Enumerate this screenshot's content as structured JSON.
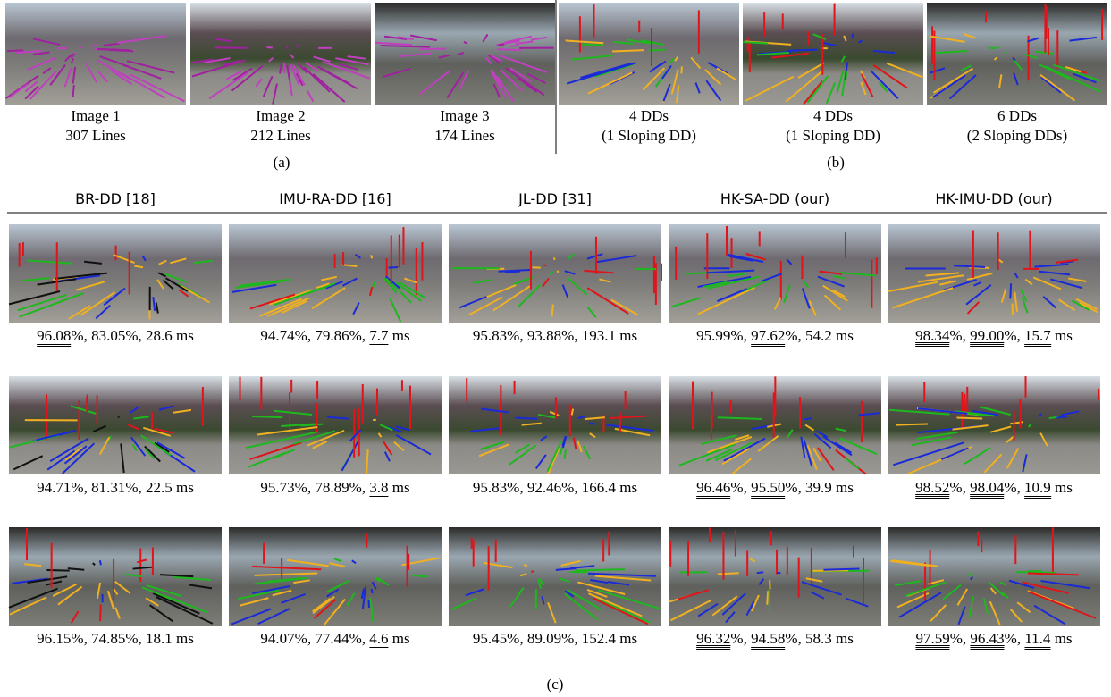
{
  "top": {
    "images": [
      {
        "line1": "Image 1",
        "line2": "307 Lines"
      },
      {
        "line1": "Image 2",
        "line2": "212 Lines"
      },
      {
        "line1": "Image 3",
        "line2": "174 Lines"
      },
      {
        "line1": "4 DDs",
        "line2": "(1 Sloping DD)"
      },
      {
        "line1": "4 DDs",
        "line2": "(1 Sloping DD)"
      },
      {
        "line1": "6 DDs",
        "line2": "(2 Sloping DDs)"
      }
    ],
    "labels": [
      "(a)",
      "(b)"
    ]
  },
  "methods": [
    "BR-DD [18]",
    "IMU-RA-DD [16]",
    "JL-DD [31]",
    "HK-SA-DD (our)",
    "HK-IMU-DD (our)"
  ],
  "rows": [
    {
      "cells": [
        {
          "caption": [
            {
              "text": "96.08",
              "underline": 2
            },
            {
              "text": "%, 83.05%, 28.6 ms",
              "underline": 0
            }
          ]
        },
        {
          "caption": [
            {
              "text": "94.74%, 79.86%, ",
              "underline": 0
            },
            {
              "text": "7.7",
              "underline": 1
            },
            {
              "text": " ms",
              "underline": 0
            }
          ]
        },
        {
          "caption": [
            {
              "text": "95.83%, 93.88%, 193.1 ms",
              "underline": 0
            }
          ]
        },
        {
          "caption": [
            {
              "text": "95.99%, ",
              "underline": 0
            },
            {
              "text": "97.62",
              "underline": 2
            },
            {
              "text": "%, 54.2 ms",
              "underline": 0
            }
          ]
        },
        {
          "caption": [
            {
              "text": "98.34",
              "underline": 3
            },
            {
              "text": "%, ",
              "underline": 0
            },
            {
              "text": "99.00",
              "underline": 3
            },
            {
              "text": "%, ",
              "underline": 0
            },
            {
              "text": "15.7",
              "underline": 2
            },
            {
              "text": " ms",
              "underline": 0
            }
          ]
        }
      ]
    },
    {
      "cells": [
        {
          "caption": [
            {
              "text": "94.71%, 81.31%, 22.5 ms",
              "underline": 0
            }
          ]
        },
        {
          "caption": [
            {
              "text": "95.73%, 78.89%, ",
              "underline": 0
            },
            {
              "text": "3.8",
              "underline": 1
            },
            {
              "text": " ms",
              "underline": 0
            }
          ]
        },
        {
          "caption": [
            {
              "text": "95.83%, 92.46%, 166.4 ms",
              "underline": 0
            }
          ]
        },
        {
          "caption": [
            {
              "text": "96.46",
              "underline": 2
            },
            {
              "text": "%, ",
              "underline": 0
            },
            {
              "text": "95.50",
              "underline": 2
            },
            {
              "text": "%, 39.9 ms",
              "underline": 0
            }
          ]
        },
        {
          "caption": [
            {
              "text": "98.52",
              "underline": 3
            },
            {
              "text": "%, ",
              "underline": 0
            },
            {
              "text": "98.04",
              "underline": 3
            },
            {
              "text": "%, ",
              "underline": 0
            },
            {
              "text": "10.9",
              "underline": 2
            },
            {
              "text": " ms",
              "underline": 0
            }
          ]
        }
      ]
    },
    {
      "cells": [
        {
          "caption": [
            {
              "text": "96.15%, 74.85%, 18.1 ms",
              "underline": 0
            }
          ]
        },
        {
          "caption": [
            {
              "text": "94.07%, 77.44%, ",
              "underline": 0
            },
            {
              "text": "4.6",
              "underline": 1
            },
            {
              "text": " ms",
              "underline": 0
            }
          ]
        },
        {
          "caption": [
            {
              "text": "95.45%, 89.09%, 152.4 ms",
              "underline": 0
            }
          ]
        },
        {
          "caption": [
            {
              "text": "96.32",
              "underline": 3
            },
            {
              "text": "%, ",
              "underline": 0
            },
            {
              "text": "94.58",
              "underline": 2
            },
            {
              "text": "%, 58.3 ms",
              "underline": 0
            }
          ]
        },
        {
          "caption": [
            {
              "text": "97.59",
              "underline": 3
            },
            {
              "text": "%, ",
              "underline": 0
            },
            {
              "text": "96.43",
              "underline": 3
            },
            {
              "text": "%, ",
              "underline": 0
            },
            {
              "text": "11.4",
              "underline": 2
            },
            {
              "text": " ms",
              "underline": 0
            }
          ]
        }
      ]
    }
  ],
  "label_c": "(c)"
}
